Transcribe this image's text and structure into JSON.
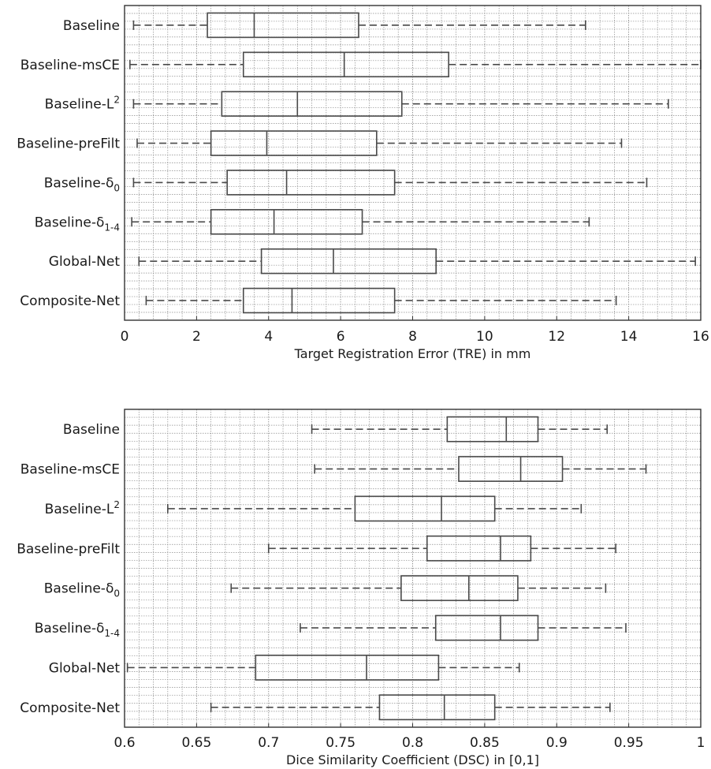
{
  "colors": {
    "box": "#4a4a4a",
    "grid": "#8c8c8c",
    "text": "#1a1a1a"
  },
  "chart_data": [
    {
      "type": "boxplot",
      "orientation": "horizontal",
      "xlabel": "Target Registration Error (TRE) in mm",
      "xlim": [
        0,
        16
      ],
      "xticks": [
        0,
        2,
        4,
        6,
        8,
        10,
        12,
        14,
        16
      ],
      "xtick_labels": [
        "0",
        "2",
        "4",
        "6",
        "8",
        "10",
        "12",
        "14",
        "16"
      ],
      "grid": true,
      "categories": [
        {
          "pre": "Baseline",
          "sub": "",
          "sup": ""
        },
        {
          "pre": "Baseline-msCE",
          "sub": "",
          "sup": ""
        },
        {
          "pre": "Baseline-L",
          "sub": "",
          "sup": "2"
        },
        {
          "pre": "Baseline-preFilt",
          "sub": "",
          "sup": ""
        },
        {
          "pre": "Baseline-δ",
          "sub": "0",
          "sup": ""
        },
        {
          "pre": "Baseline-δ",
          "sub": "1-4",
          "sup": ""
        },
        {
          "pre": "Global-Net",
          "sub": "",
          "sup": ""
        },
        {
          "pre": "Composite-Net",
          "sub": "",
          "sup": ""
        }
      ],
      "boxes": [
        {
          "min": 0.25,
          "q1": 2.3,
          "median": 3.6,
          "q3": 6.5,
          "max": 12.8
        },
        {
          "min": 0.15,
          "q1": 3.3,
          "median": 6.1,
          "q3": 9.0,
          "max": 16.0
        },
        {
          "min": 0.25,
          "q1": 2.7,
          "median": 4.8,
          "q3": 7.7,
          "max": 15.1
        },
        {
          "min": 0.35,
          "q1": 2.4,
          "median": 3.95,
          "q3": 7.0,
          "max": 13.8
        },
        {
          "min": 0.25,
          "q1": 2.85,
          "median": 4.5,
          "q3": 7.5,
          "max": 14.5
        },
        {
          "min": 0.2,
          "q1": 2.4,
          "median": 4.15,
          "q3": 6.6,
          "max": 12.9
        },
        {
          "min": 0.4,
          "q1": 3.8,
          "median": 5.8,
          "q3": 8.65,
          "max": 15.85
        },
        {
          "min": 0.6,
          "q1": 3.3,
          "median": 4.65,
          "q3": 7.5,
          "max": 13.65
        }
      ]
    },
    {
      "type": "boxplot",
      "orientation": "horizontal",
      "xlabel": "Dice Similarity Coefficient (DSC) in [0,1]",
      "xlim": [
        0.6,
        1.0
      ],
      "xticks": [
        0.6,
        0.65,
        0.7,
        0.75,
        0.8,
        0.85,
        0.9,
        0.95,
        1.0
      ],
      "xtick_labels": [
        "0.6",
        "0.65",
        "0.7",
        "0.75",
        "0.8",
        "0.85",
        "0.9",
        "0.95",
        "1"
      ],
      "grid": true,
      "categories": [
        {
          "pre": "Baseline",
          "sub": "",
          "sup": ""
        },
        {
          "pre": "Baseline-msCE",
          "sub": "",
          "sup": ""
        },
        {
          "pre": "Baseline-L",
          "sub": "",
          "sup": "2"
        },
        {
          "pre": "Baseline-preFilt",
          "sub": "",
          "sup": ""
        },
        {
          "pre": "Baseline-δ",
          "sub": "0",
          "sup": ""
        },
        {
          "pre": "Baseline-δ",
          "sub": "1-4",
          "sup": ""
        },
        {
          "pre": "Global-Net",
          "sub": "",
          "sup": ""
        },
        {
          "pre": "Composite-Net",
          "sub": "",
          "sup": ""
        }
      ],
      "boxes": [
        {
          "min": 0.73,
          "q1": 0.824,
          "median": 0.865,
          "q3": 0.887,
          "max": 0.935
        },
        {
          "min": 0.732,
          "q1": 0.832,
          "median": 0.875,
          "q3": 0.904,
          "max": 0.962
        },
        {
          "min": 0.63,
          "q1": 0.76,
          "median": 0.82,
          "q3": 0.857,
          "max": 0.917
        },
        {
          "min": 0.7,
          "q1": 0.81,
          "median": 0.861,
          "q3": 0.882,
          "max": 0.941
        },
        {
          "min": 0.674,
          "q1": 0.792,
          "median": 0.839,
          "q3": 0.873,
          "max": 0.934
        },
        {
          "min": 0.722,
          "q1": 0.816,
          "median": 0.861,
          "q3": 0.887,
          "max": 0.948
        },
        {
          "min": 0.602,
          "q1": 0.691,
          "median": 0.768,
          "q3": 0.818,
          "max": 0.874
        },
        {
          "min": 0.66,
          "q1": 0.777,
          "median": 0.822,
          "q3": 0.857,
          "max": 0.937
        }
      ]
    }
  ]
}
